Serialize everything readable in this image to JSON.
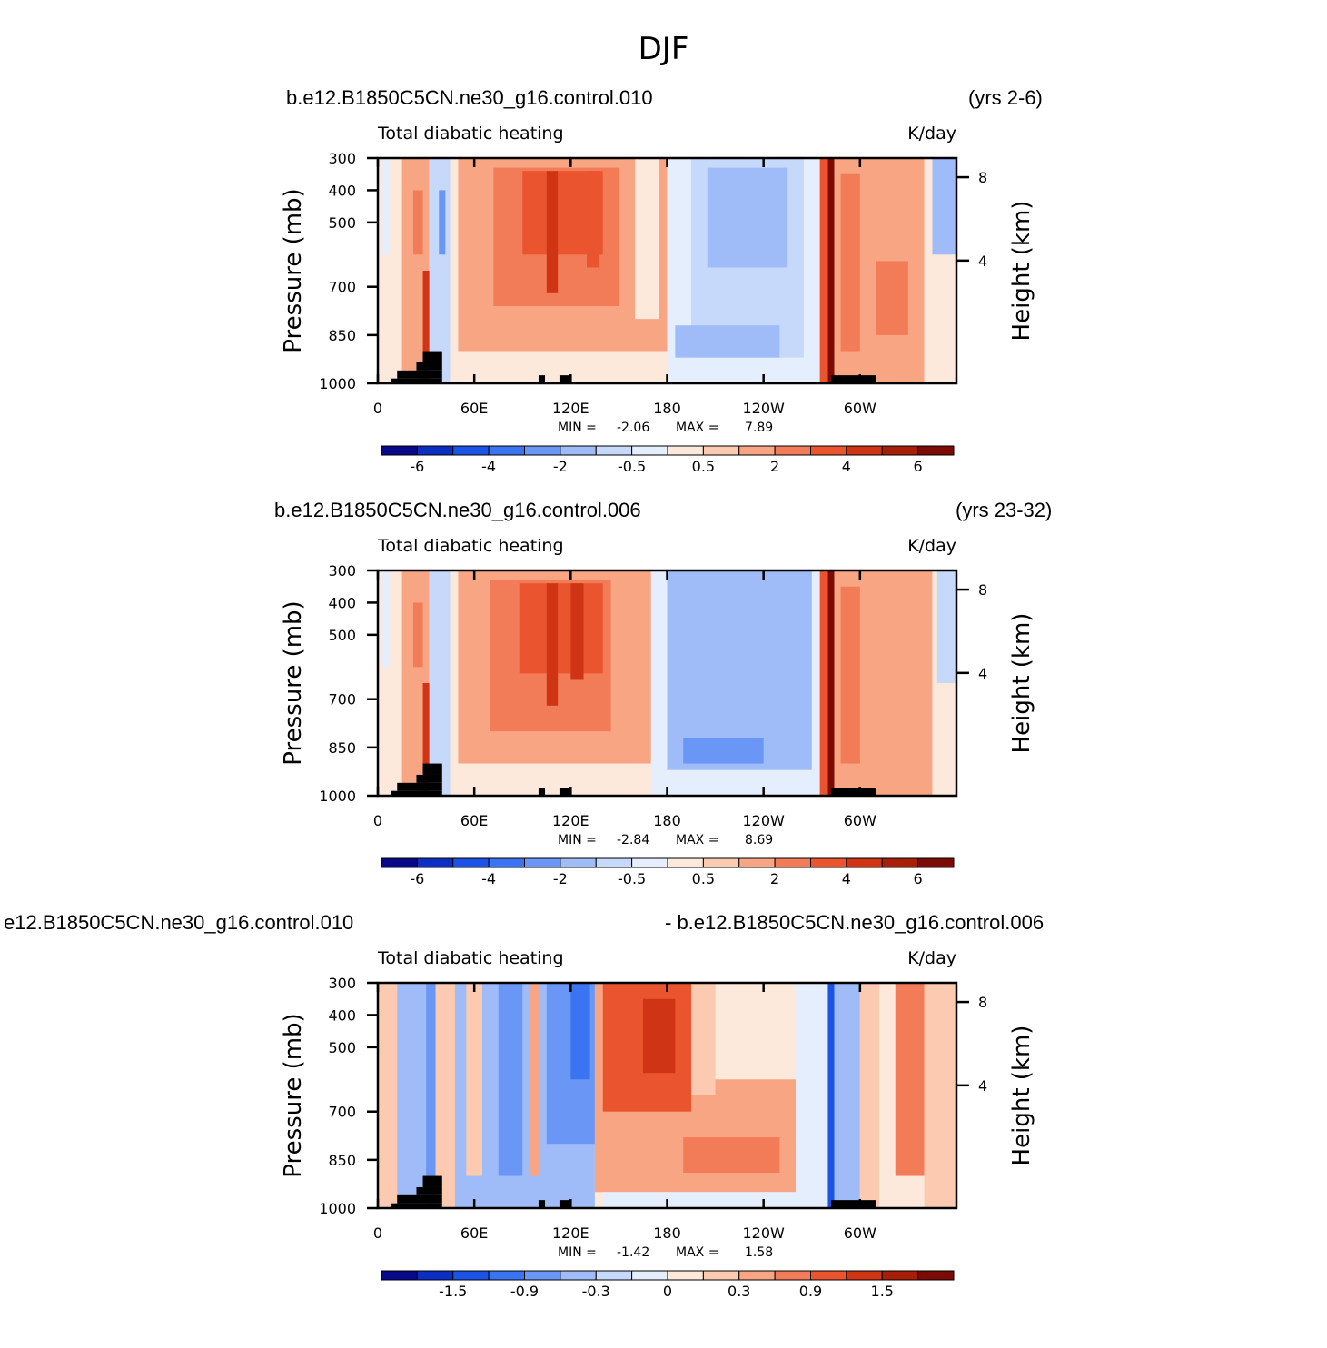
{
  "title": "DJF",
  "palette": [
    "#08088a",
    "#0a2fc2",
    "#1a53e6",
    "#3b74f0",
    "#6a96f5",
    "#9fbcf8",
    "#c6d9fb",
    "#e4eefd",
    "#fde9dc",
    "#fbcab0",
    "#f8a584",
    "#f37c58",
    "#ea5530",
    "#cf3514",
    "#a81f08",
    "#7c0c03"
  ],
  "land_color": "#000000",
  "chart_data": [
    {
      "type": "heatmap",
      "run_left": "b.e12.B1850C5CN.ne30_g16.control.010",
      "run_right": "(yrs 2-6)",
      "field_label": "Total diabatic heating",
      "units": "K/day",
      "ylabel": "Pressure (mb)",
      "ylabel_right": "Height (km)",
      "x_ticks": [
        "0",
        "60E",
        "120E",
        "180",
        "120W",
        "60W"
      ],
      "y_ticks": [
        "300",
        "400",
        "500",
        "700",
        "850",
        "1000"
      ],
      "y_ticks_right": [
        "8",
        "4"
      ],
      "stats": {
        "min_label": "MIN =",
        "min": "-2.06",
        "max_label": "MAX =",
        "max": "7.89"
      },
      "colorbar_ticks": [
        "-6",
        "-4",
        "-2",
        "-0.5",
        "0.5",
        "2",
        "4",
        "6"
      ],
      "xlim": [
        0,
        360
      ],
      "ylim": [
        1000,
        300
      ],
      "field": [
        {
          "lon": [
            0,
            15
          ],
          "lev": [
            300,
            1000
          ],
          "v": 0.3
        },
        {
          "lon": [
            2,
            7
          ],
          "lev": [
            300,
            600
          ],
          "v": -0.3
        },
        {
          "lon": [
            15,
            32
          ],
          "lev": [
            300,
            1000
          ],
          "v": 1.2
        },
        {
          "lon": [
            22,
            28
          ],
          "lev": [
            400,
            600
          ],
          "v": 2.5
        },
        {
          "lon": [
            28,
            34
          ],
          "lev": [
            650,
            1000
          ],
          "v": 4.5
        },
        {
          "lon": [
            32,
            45
          ],
          "lev": [
            300,
            1000
          ],
          "v": -0.6
        },
        {
          "lon": [
            38,
            42
          ],
          "lev": [
            400,
            600
          ],
          "v": -2.2
        },
        {
          "lon": [
            45,
            50
          ],
          "lev": [
            300,
            1000
          ],
          "v": 0.2
        },
        {
          "lon": [
            50,
            180
          ],
          "lev": [
            300,
            900
          ],
          "v": 1.3
        },
        {
          "lon": [
            72,
            150
          ],
          "lev": [
            330,
            760
          ],
          "v": 2.2
        },
        {
          "lon": [
            90,
            140
          ],
          "lev": [
            340,
            600
          ],
          "v": 3.2
        },
        {
          "lon": [
            105,
            112
          ],
          "lev": [
            340,
            720
          ],
          "v": 4.3
        },
        {
          "lon": [
            130,
            138
          ],
          "lev": [
            340,
            640
          ],
          "v": 3.8
        },
        {
          "lon": [
            50,
            180
          ],
          "lev": [
            900,
            1000
          ],
          "v": 0.3
        },
        {
          "lon": [
            160,
            175
          ],
          "lev": [
            300,
            800
          ],
          "v": 0.4
        },
        {
          "lon": [
            180,
            275
          ],
          "lev": [
            300,
            1000
          ],
          "v": -0.3
        },
        {
          "lon": [
            195,
            265
          ],
          "lev": [
            300,
            920
          ],
          "v": -0.9
        },
        {
          "lon": [
            205,
            255
          ],
          "lev": [
            330,
            640
          ],
          "v": -1.4
        },
        {
          "lon": [
            185,
            250
          ],
          "lev": [
            820,
            920
          ],
          "v": -1.6
        },
        {
          "lon": [
            275,
            280
          ],
          "lev": [
            300,
            1000
          ],
          "v": 3.0
        },
        {
          "lon": [
            280,
            284
          ],
          "lev": [
            300,
            1000
          ],
          "v": 7.5
        },
        {
          "lon": [
            284,
            340
          ],
          "lev": [
            300,
            1000
          ],
          "v": 1.3
        },
        {
          "lon": [
            288,
            300
          ],
          "lev": [
            350,
            900
          ],
          "v": 2.3
        },
        {
          "lon": [
            310,
            330
          ],
          "lev": [
            620,
            850
          ],
          "v": 2.6
        },
        {
          "lon": [
            340,
            360
          ],
          "lev": [
            300,
            1000
          ],
          "v": 0.3
        },
        {
          "lon": [
            345,
            360
          ],
          "lev": [
            300,
            600
          ],
          "v": -1.2
        }
      ],
      "land": [
        {
          "lon": [
            8,
            40
          ],
          "lev": [
            985,
            1000
          ]
        },
        {
          "lon": [
            12,
            40
          ],
          "lev": [
            960,
            985
          ]
        },
        {
          "lon": [
            24,
            40
          ],
          "lev": [
            935,
            960
          ]
        },
        {
          "lon": [
            28,
            40
          ],
          "lev": [
            900,
            935
          ]
        },
        {
          "lon": [
            100,
            104
          ],
          "lev": [
            975,
            1000
          ]
        },
        {
          "lon": [
            113,
            120
          ],
          "lev": [
            975,
            1000
          ]
        },
        {
          "lon": [
            282,
            310
          ],
          "lev": [
            975,
            1000
          ]
        }
      ]
    },
    {
      "type": "heatmap",
      "run_left": "b.e12.B1850C5CN.ne30_g16.control.006",
      "run_right": "(yrs 23-32)",
      "field_label": "Total diabatic heating",
      "units": "K/day",
      "ylabel": "Pressure (mb)",
      "ylabel_right": "Height (km)",
      "x_ticks": [
        "0",
        "60E",
        "120E",
        "180",
        "120W",
        "60W"
      ],
      "y_ticks": [
        "300",
        "400",
        "500",
        "700",
        "850",
        "1000"
      ],
      "y_ticks_right": [
        "8",
        "4"
      ],
      "stats": {
        "min_label": "MIN =",
        "min": "-2.84",
        "max_label": "MAX =",
        "max": "8.69"
      },
      "colorbar_ticks": [
        "-6",
        "-4",
        "-2",
        "-0.5",
        "0.5",
        "2",
        "4",
        "6"
      ],
      "xlim": [
        0,
        360
      ],
      "ylim": [
        1000,
        300
      ],
      "field": [
        {
          "lon": [
            0,
            15
          ],
          "lev": [
            300,
            1000
          ],
          "v": 0.3
        },
        {
          "lon": [
            2,
            7
          ],
          "lev": [
            300,
            600
          ],
          "v": -0.3
        },
        {
          "lon": [
            15,
            32
          ],
          "lev": [
            300,
            1000
          ],
          "v": 1.2
        },
        {
          "lon": [
            22,
            28
          ],
          "lev": [
            400,
            600
          ],
          "v": 2.5
        },
        {
          "lon": [
            28,
            34
          ],
          "lev": [
            650,
            1000
          ],
          "v": 4.5
        },
        {
          "lon": [
            32,
            45
          ],
          "lev": [
            300,
            1000
          ],
          "v": -0.6
        },
        {
          "lon": [
            45,
            50
          ],
          "lev": [
            300,
            1000
          ],
          "v": 0.2
        },
        {
          "lon": [
            50,
            170
          ],
          "lev": [
            300,
            900
          ],
          "v": 1.3
        },
        {
          "lon": [
            70,
            145
          ],
          "lev": [
            330,
            800
          ],
          "v": 2.4
        },
        {
          "lon": [
            88,
            140
          ],
          "lev": [
            340,
            620
          ],
          "v": 3.3
        },
        {
          "lon": [
            105,
            112
          ],
          "lev": [
            340,
            720
          ],
          "v": 4.4
        },
        {
          "lon": [
            120,
            128
          ],
          "lev": [
            340,
            640
          ],
          "v": 4.0
        },
        {
          "lon": [
            50,
            180
          ],
          "lev": [
            900,
            1000
          ],
          "v": 0.3
        },
        {
          "lon": [
            170,
            275
          ],
          "lev": [
            300,
            1000
          ],
          "v": -0.4
        },
        {
          "lon": [
            180,
            270
          ],
          "lev": [
            300,
            920
          ],
          "v": -1.1
        },
        {
          "lon": [
            185,
            265
          ],
          "lev": [
            330,
            850
          ],
          "v": -1.5
        },
        {
          "lon": [
            190,
            240
          ],
          "lev": [
            820,
            900
          ],
          "v": -2.3
        },
        {
          "lon": [
            275,
            280
          ],
          "lev": [
            300,
            1000
          ],
          "v": 3.0
        },
        {
          "lon": [
            280,
            284
          ],
          "lev": [
            300,
            1000
          ],
          "v": 8.0
        },
        {
          "lon": [
            284,
            345
          ],
          "lev": [
            300,
            1000
          ],
          "v": 1.2
        },
        {
          "lon": [
            288,
            300
          ],
          "lev": [
            350,
            900
          ],
          "v": 2.2
        },
        {
          "lon": [
            345,
            360
          ],
          "lev": [
            300,
            1000
          ],
          "v": 0.3
        },
        {
          "lon": [
            348,
            360
          ],
          "lev": [
            300,
            650
          ],
          "v": -1.0
        }
      ],
      "land": [
        {
          "lon": [
            8,
            40
          ],
          "lev": [
            985,
            1000
          ]
        },
        {
          "lon": [
            12,
            40
          ],
          "lev": [
            960,
            985
          ]
        },
        {
          "lon": [
            24,
            40
          ],
          "lev": [
            935,
            960
          ]
        },
        {
          "lon": [
            28,
            40
          ],
          "lev": [
            900,
            935
          ]
        },
        {
          "lon": [
            100,
            104
          ],
          "lev": [
            975,
            1000
          ]
        },
        {
          "lon": [
            113,
            120
          ],
          "lev": [
            975,
            1000
          ]
        },
        {
          "lon": [
            282,
            310
          ],
          "lev": [
            975,
            1000
          ]
        }
      ]
    },
    {
      "type": "heatmap",
      "run_left": "e12.B1850C5CN.ne30_g16.control.010",
      "run_right": "- b.e12.B1850C5CN.ne30_g16.control.006",
      "field_label": "Total diabatic heating",
      "units": "K/day",
      "ylabel": "Pressure (mb)",
      "ylabel_right": "Height (km)",
      "x_ticks": [
        "0",
        "60E",
        "120E",
        "180",
        "120W",
        "60W"
      ],
      "y_ticks": [
        "300",
        "400",
        "500",
        "700",
        "850",
        "1000"
      ],
      "y_ticks_right": [
        "8",
        "4"
      ],
      "stats": {
        "min_label": "MIN =",
        "min": "-1.42",
        "max_label": "MAX =",
        "max": "1.58"
      },
      "colorbar_ticks": [
        "-1.5",
        "-0.9",
        "-0.3",
        "0",
        "0.3",
        "0.9",
        "1.5"
      ],
      "xlim": [
        0,
        360
      ],
      "ylim": [
        1000,
        300
      ],
      "field": [
        {
          "lon": [
            0,
            12
          ],
          "lev": [
            300,
            1000
          ],
          "v": 0.15
        },
        {
          "lon": [
            12,
            30
          ],
          "lev": [
            300,
            1000
          ],
          "v": -0.35
        },
        {
          "lon": [
            30,
            36
          ],
          "lev": [
            300,
            1000
          ],
          "v": -0.7
        },
        {
          "lon": [
            36,
            48
          ],
          "lev": [
            300,
            1000
          ],
          "v": 0.2
        },
        {
          "lon": [
            48,
            135
          ],
          "lev": [
            300,
            1000
          ],
          "v": -0.35
        },
        {
          "lon": [
            55,
            65
          ],
          "lev": [
            300,
            900
          ],
          "v": 0.2
        },
        {
          "lon": [
            75,
            90
          ],
          "lev": [
            300,
            900
          ],
          "v": -0.65
        },
        {
          "lon": [
            95,
            100
          ],
          "lev": [
            300,
            900
          ],
          "v": 0.35
        },
        {
          "lon": [
            105,
            135
          ],
          "lev": [
            300,
            800
          ],
          "v": -0.7
        },
        {
          "lon": [
            120,
            132
          ],
          "lev": [
            300,
            600
          ],
          "v": -1.15
        },
        {
          "lon": [
            135,
            260
          ],
          "lev": [
            300,
            950
          ],
          "v": 0.45
        },
        {
          "lon": [
            140,
            195
          ],
          "lev": [
            300,
            700
          ],
          "v": 0.9
        },
        {
          "lon": [
            165,
            185
          ],
          "lev": [
            350,
            580
          ],
          "v": 1.3
        },
        {
          "lon": [
            195,
            210
          ],
          "lev": [
            300,
            650
          ],
          "v": 0.2
        },
        {
          "lon": [
            210,
            270
          ],
          "lev": [
            300,
            600
          ],
          "v": 0.1
        },
        {
          "lon": [
            190,
            250
          ],
          "lev": [
            780,
            890
          ],
          "v": 0.75
        },
        {
          "lon": [
            140,
            260
          ],
          "lev": [
            950,
            1000
          ],
          "v": -0.1
        },
        {
          "lon": [
            260,
            280
          ],
          "lev": [
            300,
            1000
          ],
          "v": -0.15
        },
        {
          "lon": [
            280,
            284
          ],
          "lev": [
            300,
            1000
          ],
          "v": -1.4
        },
        {
          "lon": [
            284,
            300
          ],
          "lev": [
            300,
            1000
          ],
          "v": -0.35
        },
        {
          "lon": [
            300,
            312
          ],
          "lev": [
            300,
            1000
          ],
          "v": 0.2
        },
        {
          "lon": [
            322,
            340
          ],
          "lev": [
            300,
            900
          ],
          "v": 0.7
        },
        {
          "lon": [
            340,
            360
          ],
          "lev": [
            300,
            1000
          ],
          "v": 0.15
        }
      ],
      "land": [
        {
          "lon": [
            8,
            40
          ],
          "lev": [
            985,
            1000
          ]
        },
        {
          "lon": [
            12,
            40
          ],
          "lev": [
            960,
            985
          ]
        },
        {
          "lon": [
            24,
            40
          ],
          "lev": [
            935,
            960
          ]
        },
        {
          "lon": [
            28,
            40
          ],
          "lev": [
            900,
            935
          ]
        },
        {
          "lon": [
            100,
            104
          ],
          "lev": [
            975,
            1000
          ]
        },
        {
          "lon": [
            113,
            120
          ],
          "lev": [
            975,
            1000
          ]
        },
        {
          "lon": [
            282,
            310
          ],
          "lev": [
            975,
            1000
          ]
        }
      ]
    }
  ]
}
